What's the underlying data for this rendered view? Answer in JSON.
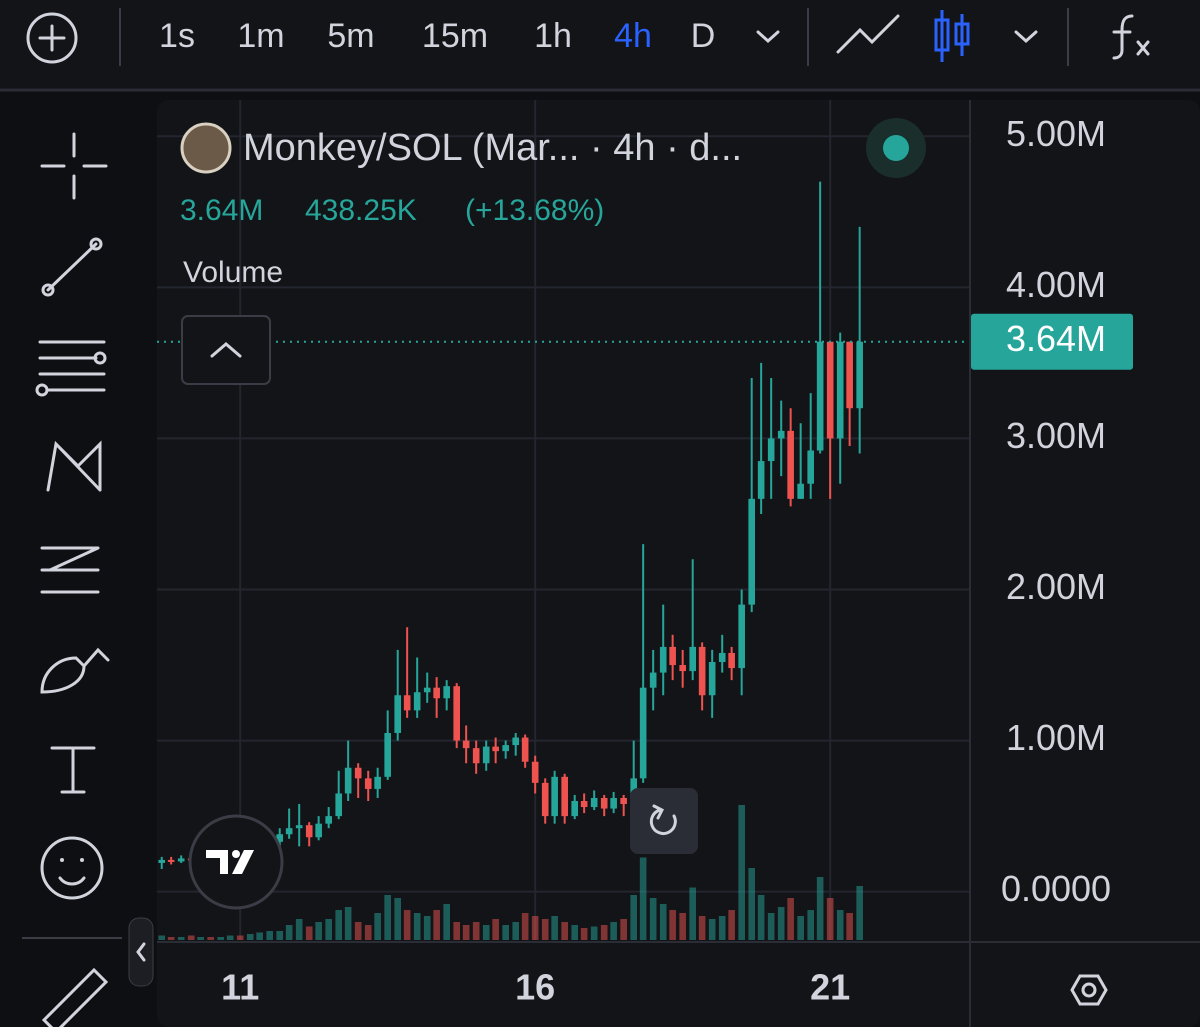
{
  "toolbar": {
    "intervals": [
      "1s",
      "1m",
      "5m",
      "15m",
      "1h",
      "4h",
      "D"
    ],
    "active": "4h"
  },
  "chart_data": {
    "type": "candlestick",
    "title": "Monkey/SOL (Mar... · 4h · d...",
    "last_price": {
      "value": 3.64,
      "label": "3.64M"
    },
    "change": "438.25K",
    "change_pct": "(+13.68%)",
    "volume_label": "Volume",
    "up_color": "#26a69a",
    "down_color": "#ef5350",
    "grid": true,
    "xlim": [
      9.59,
      23.37
    ],
    "xticks": [
      11,
      16,
      21
    ],
    "ylim": [
      -0.32,
      5.24
    ],
    "yticks": [
      {
        "value": 0,
        "label": "0.0000"
      },
      {
        "value": 1,
        "label": "1.00M"
      },
      {
        "value": 2,
        "label": "2.00M"
      },
      {
        "value": 3,
        "label": "3.00M"
      },
      {
        "value": 4,
        "label": "4.00M"
      },
      {
        "value": 5,
        "label": "5.00M"
      }
    ],
    "x": [
      9.67,
      9.83,
      10,
      10.17,
      10.33,
      10.5,
      10.67,
      10.83,
      11,
      11.17,
      11.33,
      11.5,
      11.67,
      11.83,
      12,
      12.17,
      12.33,
      12.5,
      12.67,
      12.83,
      13,
      13.17,
      13.33,
      13.5,
      13.67,
      13.83,
      14,
      14.17,
      14.33,
      14.5,
      14.67,
      14.83,
      15,
      15.17,
      15.33,
      15.5,
      15.67,
      15.83,
      16,
      16.17,
      16.33,
      16.5,
      16.67,
      16.83,
      17,
      17.17,
      17.33,
      17.5,
      17.67,
      17.83,
      18,
      18.17,
      18.33,
      18.5,
      18.67,
      18.83,
      19,
      19.17,
      19.33,
      19.5,
      19.67,
      19.83,
      20,
      20.17,
      20.33,
      20.5,
      20.67,
      20.83,
      21,
      21.17,
      21.33,
      21.5
    ],
    "open": [
      0.19,
      0.21,
      0.2,
      0.22,
      0.21,
      0.22,
      0.2,
      0.21,
      0.24,
      0.22,
      0.28,
      0.3,
      0.33,
      0.38,
      0.42,
      0.44,
      0.36,
      0.45,
      0.5,
      0.65,
      0.82,
      0.75,
      0.68,
      0.76,
      1.05,
      1.3,
      1.2,
      1.32,
      1.35,
      1.28,
      1.36,
      1.0,
      0.95,
      0.85,
      0.96,
      0.93,
      0.97,
      1.02,
      0.86,
      0.72,
      0.5,
      0.76,
      0.5,
      0.6,
      0.56,
      0.62,
      0.55,
      0.62,
      0.58,
      0.75,
      1.35,
      1.45,
      1.62,
      1.5,
      1.46,
      1.62,
      1.3,
      1.52,
      1.58,
      1.48,
      1.9,
      2.6,
      2.85,
      3.0,
      3.05,
      2.6,
      2.7,
      2.92,
      3.64,
      3.0,
      3.64,
      3.2
    ],
    "high": [
      0.23,
      0.23,
      0.24,
      0.23,
      0.24,
      0.23,
      0.22,
      0.26,
      0.26,
      0.3,
      0.33,
      0.36,
      0.42,
      0.55,
      0.58,
      0.46,
      0.5,
      0.56,
      0.8,
      1.0,
      0.85,
      0.8,
      0.82,
      1.2,
      1.6,
      1.75,
      1.55,
      1.45,
      1.42,
      1.4,
      1.38,
      1.1,
      1.0,
      1.0,
      1.02,
      1.0,
      1.05,
      1.04,
      0.9,
      0.75,
      0.8,
      0.78,
      0.64,
      0.65,
      0.67,
      0.64,
      0.66,
      0.64,
      1.0,
      2.3,
      1.6,
      1.9,
      1.7,
      1.6,
      2.2,
      1.65,
      1.6,
      1.7,
      1.62,
      2.0,
      3.4,
      3.5,
      3.4,
      3.25,
      3.2,
      3.1,
      3.3,
      4.7,
      3.64,
      3.7,
      3.64,
      4.4
    ],
    "low": [
      0.15,
      0.18,
      0.19,
      0.2,
      0.2,
      0.19,
      0.19,
      0.2,
      0.21,
      0.21,
      0.25,
      0.28,
      0.3,
      0.35,
      0.3,
      0.3,
      0.34,
      0.42,
      0.48,
      0.6,
      0.62,
      0.6,
      0.62,
      0.74,
      1.0,
      1.15,
      1.15,
      1.25,
      1.15,
      1.2,
      0.95,
      0.85,
      0.78,
      0.8,
      0.85,
      0.88,
      0.9,
      0.82,
      0.65,
      0.45,
      0.45,
      0.45,
      0.48,
      0.52,
      0.54,
      0.5,
      0.52,
      0.5,
      0.45,
      0.72,
      1.2,
      1.3,
      1.4,
      1.35,
      1.4,
      1.2,
      1.15,
      1.45,
      1.4,
      1.3,
      1.85,
      2.5,
      2.6,
      2.75,
      2.55,
      2.6,
      2.6,
      2.9,
      2.6,
      2.7,
      2.95,
      2.9
    ],
    "close": [
      0.21,
      0.2,
      0.22,
      0.21,
      0.22,
      0.2,
      0.21,
      0.24,
      0.22,
      0.28,
      0.3,
      0.33,
      0.38,
      0.42,
      0.44,
      0.36,
      0.45,
      0.5,
      0.65,
      0.82,
      0.75,
      0.68,
      0.76,
      1.05,
      1.3,
      1.2,
      1.32,
      1.35,
      1.28,
      1.36,
      1.0,
      0.95,
      0.85,
      0.96,
      0.93,
      0.97,
      1.02,
      0.86,
      0.72,
      0.5,
      0.76,
      0.5,
      0.6,
      0.56,
      0.62,
      0.55,
      0.62,
      0.58,
      0.75,
      1.35,
      1.45,
      1.62,
      1.5,
      1.46,
      1.62,
      1.3,
      1.52,
      1.58,
      1.48,
      1.9,
      2.6,
      2.85,
      3.0,
      3.05,
      2.6,
      2.7,
      2.92,
      3.64,
      3.0,
      3.64,
      3.2,
      3.64
    ],
    "volume": [
      3,
      2,
      2,
      3,
      2,
      2,
      2,
      3,
      3,
      4,
      5,
      6,
      6,
      10,
      14,
      9,
      12,
      14,
      20,
      22,
      12,
      10,
      18,
      30,
      28,
      20,
      18,
      16,
      20,
      24,
      12,
      10,
      12,
      10,
      14,
      10,
      12,
      18,
      16,
      14,
      16,
      12,
      10,
      8,
      9,
      10,
      12,
      14,
      30,
      55,
      28,
      24,
      20,
      18,
      35,
      16,
      14,
      16,
      20,
      90,
      48,
      30,
      18,
      22,
      28,
      16,
      20,
      42,
      28,
      20,
      18,
      36
    ]
  }
}
